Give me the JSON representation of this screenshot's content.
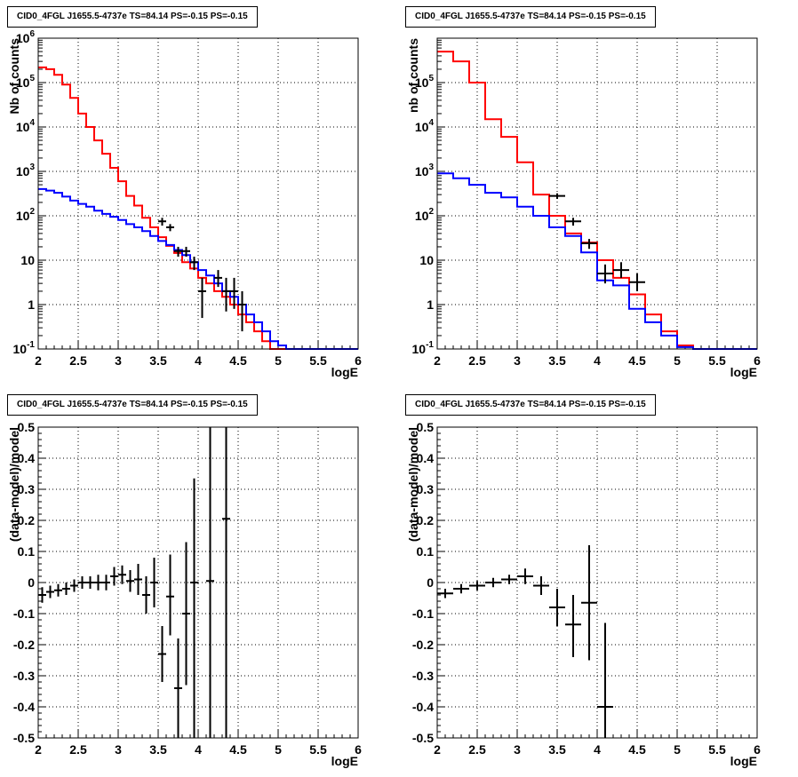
{
  "panel_title": "CID0_4FGL J1655.5-4737e TS=84.14 PS=-0.15 PS=-0.15",
  "colors": {
    "model": "#ff0000",
    "source": "#0000ff",
    "data": "#000000",
    "grid": "#000000"
  },
  "chart_data": [
    {
      "type": "line",
      "title": "CID0_4FGL J1655.5-4737e TS=84.14 PS=-0.15 PS=-0.15",
      "xlabel": "logE",
      "ylabel": "Nb of counts",
      "yscale": "log",
      "xlim": [
        2,
        6
      ],
      "ylim": [
        0.1,
        1000000
      ],
      "xticks": [
        "2",
        "2.5",
        "3",
        "3.5",
        "4",
        "4.5",
        "5",
        "5.5",
        "6"
      ],
      "yticks": [
        {
          "value": 0.1,
          "base": "10",
          "exp": "-1"
        },
        {
          "value": 1,
          "label": "1"
        },
        {
          "value": 10,
          "label": "10"
        },
        {
          "value": 100,
          "base": "10",
          "exp": "2"
        },
        {
          "value": 1000,
          "base": "10",
          "exp": "3"
        },
        {
          "value": 10000,
          "base": "10",
          "exp": "4"
        },
        {
          "value": 100000,
          "base": "10",
          "exp": "5"
        },
        {
          "value": 1000000,
          "base": "10",
          "exp": "6"
        }
      ],
      "grid": true,
      "series": [
        {
          "role": "model",
          "style": "step",
          "color": "#ff0000",
          "edges": [
            2,
            2.1,
            2.2,
            2.3,
            2.4,
            2.5,
            2.6,
            2.7,
            2.8,
            2.9,
            3.0,
            3.1,
            3.2,
            3.3,
            3.4,
            3.5,
            3.6,
            3.7,
            3.8,
            3.9,
            4.0,
            4.1,
            4.2,
            4.3,
            4.4,
            4.5,
            4.6,
            4.7,
            4.8,
            4.9,
            5.0,
            5.1,
            5.2,
            5.3,
            5.4,
            5.5,
            5.6,
            5.7,
            5.8,
            5.9,
            6.0
          ],
          "values": [
            220000,
            200000,
            150000,
            90000,
            45000,
            20000,
            10000,
            5000,
            2500,
            1200,
            600,
            280,
            170,
            90,
            55,
            33,
            21,
            14.5,
            9,
            6.5,
            4,
            3,
            2,
            1.5,
            1,
            0.6,
            0.4,
            0.25,
            0.15,
            0.1,
            0.1,
            0.1,
            0.1,
            0.1,
            0.1,
            0.1,
            0.1,
            0.1,
            0.1,
            0.1
          ]
        },
        {
          "role": "source",
          "style": "step",
          "color": "#0000ff",
          "edges": [
            2,
            2.1,
            2.2,
            2.3,
            2.4,
            2.5,
            2.6,
            2.7,
            2.8,
            2.9,
            3.0,
            3.1,
            3.2,
            3.3,
            3.4,
            3.5,
            3.6,
            3.7,
            3.8,
            3.9,
            4.0,
            4.1,
            4.2,
            4.3,
            4.4,
            4.5,
            4.6,
            4.7,
            4.8,
            4.9,
            5.0,
            5.1,
            5.2,
            5.3,
            5.4,
            5.5,
            5.6,
            5.7,
            5.8,
            5.9,
            6.0
          ],
          "values": [
            400,
            370,
            330,
            270,
            220,
            185,
            160,
            130,
            110,
            95,
            80,
            65,
            55,
            45,
            35,
            27,
            22,
            17,
            13,
            9,
            6,
            4.5,
            3,
            2,
            1.5,
            1,
            0.6,
            0.4,
            0.25,
            0.15,
            0.12,
            0.1,
            0.1,
            0.1,
            0.1,
            0.1,
            0.1,
            0.1,
            0.1,
            0.1
          ]
        },
        {
          "role": "data",
          "style": "errorbar",
          "color": "#000000",
          "points": [
            {
              "x": 3.55,
              "y": 75,
              "xerr": 0.05,
              "ylo": 60,
              "yhi": 90
            },
            {
              "x": 3.65,
              "y": 55,
              "xerr": 0.05,
              "ylo": 45,
              "yhi": 65
            },
            {
              "x": 3.75,
              "y": 16,
              "xerr": 0.05,
              "ylo": 12,
              "yhi": 20
            },
            {
              "x": 3.85,
              "y": 16,
              "xerr": 0.05,
              "ylo": 12,
              "yhi": 20
            },
            {
              "x": 3.95,
              "y": 9,
              "xerr": 0.05,
              "ylo": 6,
              "yhi": 12
            },
            {
              "x": 4.05,
              "y": 2,
              "xerr": 0.05,
              "ylo": 0.5,
              "yhi": 4
            },
            {
              "x": 4.25,
              "y": 4,
              "xerr": 0.05,
              "ylo": 2.5,
              "yhi": 6
            },
            {
              "x": 4.35,
              "y": 2,
              "xerr": 0.05,
              "ylo": 0.7,
              "yhi": 4
            },
            {
              "x": 4.45,
              "y": 2,
              "xerr": 0.05,
              "ylo": 0.8,
              "yhi": 4
            },
            {
              "x": 4.55,
              "y": 1,
              "xerr": 0.05,
              "ylo": 0.25,
              "yhi": 2
            }
          ]
        }
      ]
    },
    {
      "type": "line",
      "title": "CID0_4FGL J1655.5-4737e TS=84.14 PS=-0.15 PS=-0.15",
      "xlabel": "logE",
      "ylabel": "nb of counts",
      "yscale": "log",
      "xlim": [
        2,
        6
      ],
      "ylim": [
        0.1,
        1000000
      ],
      "xticks": [
        "2",
        "2.5",
        "3",
        "3.5",
        "4",
        "4.5",
        "5",
        "5.5",
        "6"
      ],
      "yticks": [
        {
          "value": 0.1,
          "base": "10",
          "exp": "-1"
        },
        {
          "value": 1,
          "label": "1"
        },
        {
          "value": 10,
          "label": "10"
        },
        {
          "value": 100,
          "base": "10",
          "exp": "2"
        },
        {
          "value": 1000,
          "base": "10",
          "exp": "3"
        },
        {
          "value": 10000,
          "base": "10",
          "exp": "4"
        },
        {
          "value": 100000,
          "base": "10",
          "exp": "5"
        }
      ],
      "grid": true,
      "series": [
        {
          "role": "model",
          "style": "step",
          "color": "#ff0000",
          "edges": [
            2,
            2.2,
            2.4,
            2.6,
            2.8,
            3.0,
            3.2,
            3.4,
            3.6,
            3.8,
            4.0,
            4.2,
            4.4,
            4.6,
            4.8,
            5.0,
            5.2,
            5.4,
            5.6,
            5.8,
            6.0
          ],
          "values": [
            500000,
            300000,
            100000,
            15000,
            6000,
            1600,
            300,
            100,
            40,
            25,
            10,
            4,
            1.7,
            0.6,
            0.25,
            0.12,
            0.1,
            0.1,
            0.1,
            0.1
          ]
        },
        {
          "role": "source",
          "style": "step",
          "color": "#0000ff",
          "edges": [
            2,
            2.2,
            2.4,
            2.6,
            2.8,
            3.0,
            3.2,
            3.4,
            3.6,
            3.8,
            4.0,
            4.2,
            4.4,
            4.6,
            4.8,
            5.0,
            5.2,
            5.4,
            5.6,
            5.8,
            6.0
          ],
          "values": [
            900,
            700,
            500,
            330,
            260,
            160,
            100,
            55,
            35,
            15,
            3.5,
            2.7,
            0.8,
            0.4,
            0.2,
            0.11,
            0.1,
            0.1,
            0.1,
            0.1
          ]
        },
        {
          "role": "data",
          "style": "errorbar",
          "color": "#000000",
          "points": [
            {
              "x": 3.5,
              "y": 280,
              "xerr": 0.1,
              "ylo": 240,
              "yhi": 320
            },
            {
              "x": 3.7,
              "y": 75,
              "xerr": 0.1,
              "ylo": 60,
              "yhi": 90
            },
            {
              "x": 3.9,
              "y": 24,
              "xerr": 0.1,
              "ylo": 18,
              "yhi": 30
            },
            {
              "x": 4.1,
              "y": 5,
              "xerr": 0.1,
              "ylo": 3,
              "yhi": 8
            },
            {
              "x": 4.3,
              "y": 6,
              "xerr": 0.1,
              "ylo": 4,
              "yhi": 9
            },
            {
              "x": 4.5,
              "y": 3.2,
              "xerr": 0.1,
              "ylo": 2,
              "yhi": 5
            }
          ]
        }
      ]
    },
    {
      "type": "scatter",
      "title": "CID0_4FGL J1655.5-4737e TS=84.14 PS=-0.15 PS=-0.15",
      "xlabel": "logE",
      "ylabel": "(data-model)/model",
      "yscale": "linear",
      "xlim": [
        2,
        6
      ],
      "ylim": [
        -0.5,
        0.5
      ],
      "xticks": [
        "2",
        "2.5",
        "3",
        "3.5",
        "4",
        "4.5",
        "5",
        "5.5",
        "6"
      ],
      "yticks": [
        "-0.5",
        "-0.4",
        "-0.3",
        "-0.2",
        "-0.1",
        "0",
        "0.1",
        "0.2",
        "0.3",
        "0.4",
        "0.5"
      ],
      "grid": true,
      "series": [
        {
          "role": "data",
          "style": "errorbar",
          "color": "#000000",
          "points": [
            {
              "x": 2.05,
              "y": -0.04,
              "xerr": 0.05,
              "ylo": -0.065,
              "yhi": -0.015
            },
            {
              "x": 2.15,
              "y": -0.03,
              "xerr": 0.05,
              "ylo": -0.05,
              "yhi": -0.01
            },
            {
              "x": 2.25,
              "y": -0.025,
              "xerr": 0.05,
              "ylo": -0.045,
              "yhi": -0.005
            },
            {
              "x": 2.35,
              "y": -0.02,
              "xerr": 0.05,
              "ylo": -0.04,
              "yhi": 0
            },
            {
              "x": 2.45,
              "y": -0.01,
              "xerr": 0.05,
              "ylo": -0.03,
              "yhi": 0.01
            },
            {
              "x": 2.55,
              "y": 0.0,
              "xerr": 0.05,
              "ylo": -0.02,
              "yhi": 0.02
            },
            {
              "x": 2.65,
              "y": 0.0,
              "xerr": 0.05,
              "ylo": -0.02,
              "yhi": 0.02
            },
            {
              "x": 2.75,
              "y": 0.0,
              "xerr": 0.05,
              "ylo": -0.025,
              "yhi": 0.025
            },
            {
              "x": 2.85,
              "y": 0.0,
              "xerr": 0.05,
              "ylo": -0.025,
              "yhi": 0.025
            },
            {
              "x": 2.95,
              "y": 0.02,
              "xerr": 0.05,
              "ylo": -0.01,
              "yhi": 0.05
            },
            {
              "x": 3.05,
              "y": 0.025,
              "xerr": 0.05,
              "ylo": -0.005,
              "yhi": 0.055
            },
            {
              "x": 3.15,
              "y": 0.005,
              "xerr": 0.05,
              "ylo": -0.03,
              "yhi": 0.04
            },
            {
              "x": 3.25,
              "y": 0.01,
              "xerr": 0.05,
              "ylo": -0.04,
              "yhi": 0.06
            },
            {
              "x": 3.35,
              "y": -0.04,
              "xerr": 0.05,
              "ylo": -0.1,
              "yhi": 0.02
            },
            {
              "x": 3.45,
              "y": 0.0,
              "xerr": 0.05,
              "ylo": -0.08,
              "yhi": 0.08
            },
            {
              "x": 3.55,
              "y": -0.23,
              "xerr": 0.05,
              "ylo": -0.32,
              "yhi": -0.14
            },
            {
              "x": 3.65,
              "y": -0.045,
              "xerr": 0.05,
              "ylo": -0.17,
              "yhi": 0.09
            },
            {
              "x": 3.75,
              "y": -0.34,
              "xerr": 0.05,
              "ylo": -0.5,
              "yhi": -0.18
            },
            {
              "x": 3.85,
              "y": -0.1,
              "xerr": 0.05,
              "ylo": -0.33,
              "yhi": 0.13
            },
            {
              "x": 3.95,
              "y": 0.0,
              "xerr": 0.05,
              "ylo": -0.5,
              "yhi": 0.335
            },
            {
              "x": 4.15,
              "y": 0.005,
              "xerr": 0.05,
              "ylo": -0.5,
              "yhi": 0.5
            },
            {
              "x": 4.35,
              "y": 0.205,
              "xerr": 0.05,
              "ylo": -0.5,
              "yhi": 0.5
            }
          ]
        }
      ]
    },
    {
      "type": "scatter",
      "title": "CID0_4FGL J1655.5-4737e TS=84.14 PS=-0.15 PS=-0.15",
      "xlabel": "logE",
      "ylabel": "(data-model)/model",
      "yscale": "linear",
      "xlim": [
        2,
        6
      ],
      "ylim": [
        -0.5,
        0.5
      ],
      "xticks": [
        "2",
        "2.5",
        "3",
        "3.5",
        "4",
        "4.5",
        "5",
        "5.5",
        "6"
      ],
      "yticks": [
        "-0.5",
        "-0.4",
        "-0.3",
        "-0.2",
        "-0.1",
        "0",
        "0.1",
        "0.2",
        "0.3",
        "0.4",
        "0.5"
      ],
      "grid": true,
      "series": [
        {
          "role": "data",
          "style": "errorbar",
          "color": "#000000",
          "points": [
            {
              "x": 2.1,
              "y": -0.035,
              "xerr": 0.1,
              "ylo": -0.05,
              "yhi": -0.02
            },
            {
              "x": 2.3,
              "y": -0.02,
              "xerr": 0.1,
              "ylo": -0.035,
              "yhi": -0.005
            },
            {
              "x": 2.5,
              "y": -0.01,
              "xerr": 0.1,
              "ylo": -0.025,
              "yhi": 0.005
            },
            {
              "x": 2.7,
              "y": 0.0,
              "xerr": 0.1,
              "ylo": -0.015,
              "yhi": 0.015
            },
            {
              "x": 2.9,
              "y": 0.01,
              "xerr": 0.1,
              "ylo": -0.005,
              "yhi": 0.025
            },
            {
              "x": 3.1,
              "y": 0.02,
              "xerr": 0.1,
              "ylo": -0.005,
              "yhi": 0.045
            },
            {
              "x": 3.3,
              "y": -0.01,
              "xerr": 0.1,
              "ylo": -0.04,
              "yhi": 0.02
            },
            {
              "x": 3.5,
              "y": -0.08,
              "xerr": 0.1,
              "ylo": -0.14,
              "yhi": -0.02
            },
            {
              "x": 3.7,
              "y": -0.135,
              "xerr": 0.1,
              "ylo": -0.24,
              "yhi": -0.04
            },
            {
              "x": 3.9,
              "y": -0.065,
              "xerr": 0.1,
              "ylo": -0.25,
              "yhi": 0.12
            },
            {
              "x": 4.1,
              "y": -0.4,
              "xerr": 0.1,
              "ylo": -0.5,
              "yhi": -0.13
            }
          ]
        }
      ]
    }
  ]
}
